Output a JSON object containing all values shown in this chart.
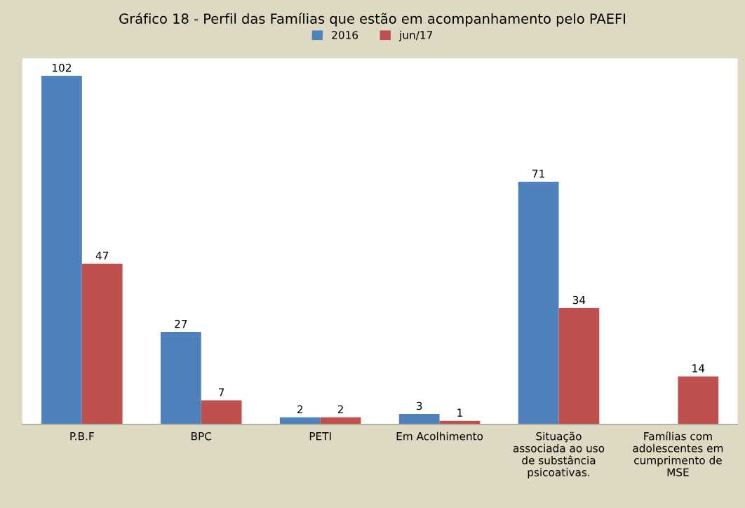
{
  "chart_data": {
    "type": "bar",
    "title": "Gráfico 18 - Perfil das Famílias que estão em acompanhamento pelo PAEFI",
    "categories": [
      "P.B.F",
      "BPC",
      "PETI",
      "Em Acolhimento",
      "Situação\nassociada ao uso\nde substância\npsicoativas.",
      "Famílias com\nadolescentes em\ncumprimento de\nMSE"
    ],
    "series": [
      {
        "name": "2016",
        "color": "#4f81bd",
        "values": [
          102,
          27,
          2,
          3,
          71,
          null
        ]
      },
      {
        "name": "jun/17",
        "color": "#c0504d",
        "values": [
          47,
          7,
          2,
          1,
          34,
          14
        ]
      }
    ],
    "data_labels": true,
    "legend": "top",
    "grid": false
  }
}
